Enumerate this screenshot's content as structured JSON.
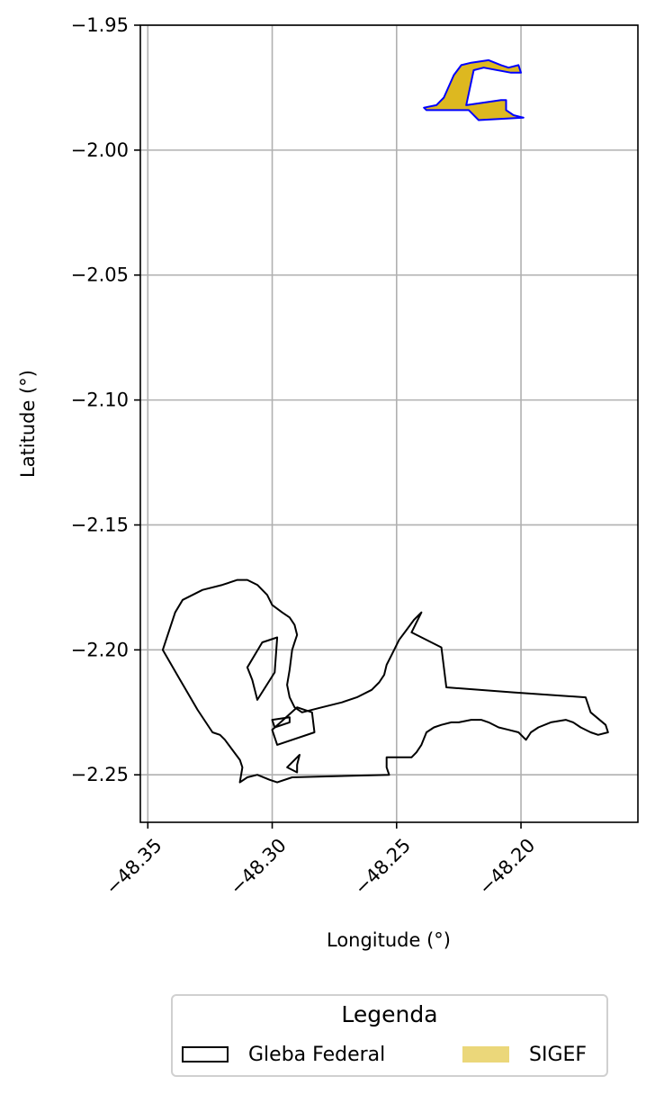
{
  "chart_data": {
    "type": "map",
    "xlabel": "Longitude (°)",
    "ylabel": "Latitude (°)",
    "xlim": [
      -48.353,
      -48.153
    ],
    "ylim": [
      -2.269,
      -1.95
    ],
    "x_ticks": [
      -48.35,
      -48.3,
      -48.25,
      -48.2
    ],
    "x_tick_labels": [
      "−48.35",
      "−48.30",
      "−48.25",
      "−48.20"
    ],
    "y_ticks": [
      -1.95,
      -2.0,
      -2.05,
      -2.1,
      -2.15,
      -2.2,
      -2.25
    ],
    "y_tick_labels": [
      "−1.95",
      "−2.00",
      "−2.05",
      "−2.10",
      "−2.15",
      "−2.20",
      "−2.25"
    ],
    "grid": true,
    "layers": [
      {
        "name": "Gleba Federal",
        "fill": "none",
        "stroke": "#000000",
        "polygons": [
          [
            [
              -48.344,
              -2.2
            ],
            [
              -48.339,
              -2.185
            ],
            [
              -48.336,
              -2.18
            ],
            [
              -48.328,
              -2.176
            ],
            [
              -48.32,
              -2.174
            ],
            [
              -48.314,
              -2.172
            ],
            [
              -48.31,
              -2.172
            ],
            [
              -48.306,
              -2.174
            ],
            [
              -48.302,
              -2.178
            ],
            [
              -48.3,
              -2.182
            ],
            [
              -48.296,
              -2.185
            ],
            [
              -48.293,
              -2.187
            ],
            [
              -48.291,
              -2.19
            ],
            [
              -48.29,
              -2.194
            ],
            [
              -48.291,
              -2.197
            ],
            [
              -48.292,
              -2.2
            ],
            [
              -48.293,
              -2.208
            ],
            [
              -48.294,
              -2.214
            ],
            [
              -48.293,
              -2.219
            ],
            [
              -48.291,
              -2.223
            ],
            [
              -48.288,
              -2.225
            ],
            [
              -48.28,
              -2.223
            ],
            [
              -48.272,
              -2.221
            ],
            [
              -48.266,
              -2.219
            ],
            [
              -48.26,
              -2.216
            ],
            [
              -48.257,
              -2.213
            ],
            [
              -48.255,
              -2.21
            ],
            [
              -48.254,
              -2.206
            ],
            [
              -48.252,
              -2.202
            ],
            [
              -48.249,
              -2.196
            ],
            [
              -48.246,
              -2.192
            ],
            [
              -48.243,
              -2.188
            ],
            [
              -48.24,
              -2.185
            ],
            [
              -48.244,
              -2.193
            ],
            [
              -48.232,
              -2.199
            ],
            [
              -48.23,
              -2.215
            ],
            [
              -48.203,
              -2.217
            ],
            [
              -48.174,
              -2.219
            ],
            [
              -48.172,
              -2.225
            ],
            [
              -48.166,
              -2.23
            ],
            [
              -48.165,
              -2.233
            ],
            [
              -48.169,
              -2.234
            ],
            [
              -48.172,
              -2.233
            ],
            [
              -48.176,
              -2.231
            ],
            [
              -48.179,
              -2.229
            ],
            [
              -48.182,
              -2.228
            ],
            [
              -48.188,
              -2.229
            ],
            [
              -48.193,
              -2.231
            ],
            [
              -48.196,
              -2.233
            ],
            [
              -48.198,
              -2.236
            ],
            [
              -48.201,
              -2.233
            ],
            [
              -48.205,
              -2.232
            ],
            [
              -48.209,
              -2.231
            ],
            [
              -48.213,
              -2.229
            ],
            [
              -48.216,
              -2.228
            ],
            [
              -48.22,
              -2.228
            ],
            [
              -48.225,
              -2.229
            ],
            [
              -48.228,
              -2.229
            ],
            [
              -48.232,
              -2.23
            ],
            [
              -48.235,
              -2.231
            ],
            [
              -48.238,
              -2.233
            ],
            [
              -48.24,
              -2.238
            ],
            [
              -48.242,
              -2.241
            ],
            [
              -48.244,
              -2.243
            ],
            [
              -48.254,
              -2.243
            ],
            [
              -48.254,
              -2.247
            ],
            [
              -48.253,
              -2.25
            ],
            [
              -48.292,
              -2.251
            ],
            [
              -48.298,
              -2.253
            ],
            [
              -48.301,
              -2.252
            ],
            [
              -48.306,
              -2.25
            ],
            [
              -48.31,
              -2.251
            ],
            [
              -48.313,
              -2.253
            ],
            [
              -48.312,
              -2.247
            ],
            [
              -48.313,
              -2.244
            ],
            [
              -48.316,
              -2.24
            ],
            [
              -48.319,
              -2.236
            ],
            [
              -48.321,
              -2.234
            ],
            [
              -48.324,
              -2.233
            ],
            [
              -48.33,
              -2.224
            ],
            [
              -48.337,
              -2.212
            ],
            [
              -48.344,
              -2.2
            ]
          ],
          [
            [
              -48.298,
              -2.195
            ],
            [
              -48.304,
              -2.197
            ],
            [
              -48.31,
              -2.207
            ],
            [
              -48.308,
              -2.212
            ],
            [
              -48.306,
              -2.22
            ],
            [
              -48.299,
              -2.209
            ],
            [
              -48.298,
              -2.195
            ]
          ],
          [
            [
              -48.293,
              -2.227
            ],
            [
              -48.3,
              -2.228
            ],
            [
              -48.299,
              -2.231
            ],
            [
              -48.293,
              -2.229
            ],
            [
              -48.293,
              -2.227
            ]
          ],
          [
            [
              -48.29,
              -2.223
            ],
            [
              -48.3,
              -2.232
            ],
            [
              -48.298,
              -2.238
            ],
            [
              -48.283,
              -2.233
            ],
            [
              -48.284,
              -2.225
            ],
            [
              -48.29,
              -2.223
            ]
          ],
          [
            [
              -48.294,
              -2.247
            ],
            [
              -48.289,
              -2.242
            ],
            [
              -48.29,
              -2.246
            ],
            [
              -48.29,
              -2.249
            ],
            [
              -48.294,
              -2.247
            ]
          ]
        ]
      },
      {
        "name": "SIGEF",
        "fill": "#ddb820",
        "stroke": "#0000ff",
        "polygons": [
          [
            [
              -48.239,
              -1.983
            ],
            [
              -48.234,
              -1.982
            ],
            [
              -48.231,
              -1.979
            ],
            [
              -48.227,
              -1.97
            ],
            [
              -48.224,
              -1.966
            ],
            [
              -48.22,
              -1.965
            ],
            [
              -48.213,
              -1.964
            ],
            [
              -48.208,
              -1.966
            ],
            [
              -48.205,
              -1.967
            ],
            [
              -48.201,
              -1.966
            ],
            [
              -48.2,
              -1.969
            ],
            [
              -48.204,
              -1.969
            ],
            [
              -48.215,
              -1.967
            ],
            [
              -48.219,
              -1.968
            ],
            [
              -48.222,
              -1.982
            ],
            [
              -48.208,
              -1.98
            ],
            [
              -48.206,
              -1.98
            ],
            [
              -48.206,
              -1.984
            ],
            [
              -48.203,
              -1.986
            ],
            [
              -48.199,
              -1.987
            ],
            [
              -48.217,
              -1.988
            ],
            [
              -48.221,
              -1.984
            ],
            [
              -48.238,
              -1.984
            ],
            [
              -48.239,
              -1.983
            ]
          ]
        ]
      }
    ],
    "legend": {
      "title": "Legenda",
      "placement": "bottom-center",
      "entries": [
        {
          "label": "Gleba Federal",
          "fill": "none",
          "stroke": "#000000"
        },
        {
          "label": "SIGEF",
          "fill": "#ebd77a",
          "stroke": "none"
        }
      ]
    }
  }
}
